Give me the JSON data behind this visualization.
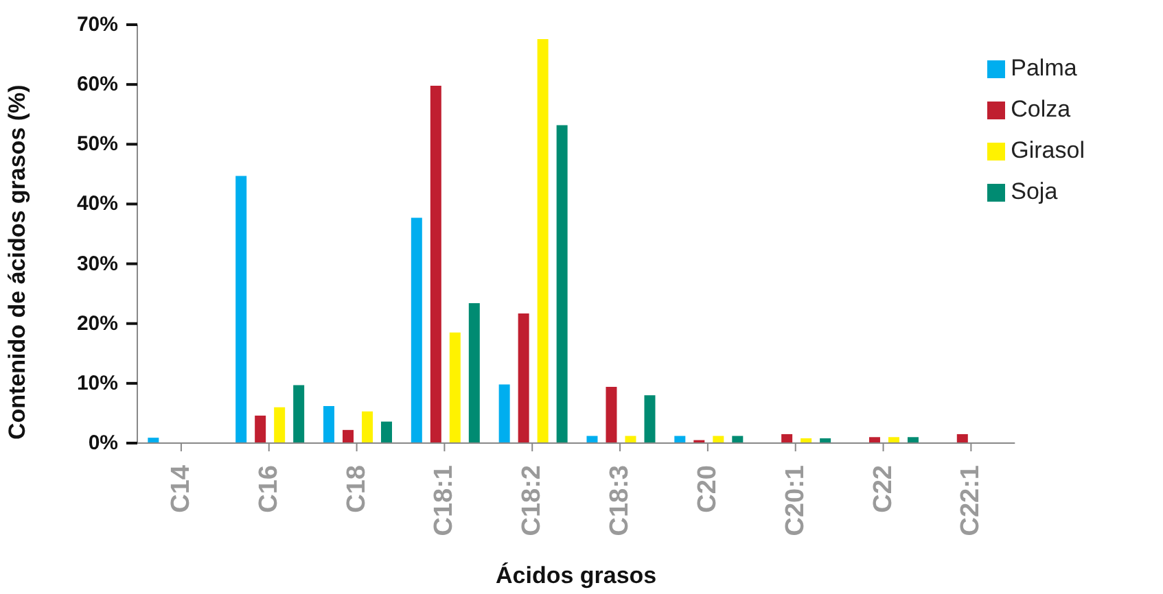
{
  "chart_data": {
    "type": "bar",
    "xlabel": "Ácidos grasos",
    "ylabel": "Contenido de ácidos grasos (%)",
    "categories": [
      "C14",
      "C16",
      "C18",
      "C18:1",
      "C18:2",
      "C18:3",
      "C20",
      "C20:1",
      "C22",
      "C22:1"
    ],
    "series": [
      {
        "name": "Palma",
        "color": "#00aeef",
        "values": [
          0.9,
          44.7,
          6.2,
          37.7,
          9.8,
          1.2,
          1.2,
          null,
          null,
          null
        ]
      },
      {
        "name": "Colza",
        "color": "#c01f30",
        "values": [
          null,
          4.6,
          2.2,
          59.8,
          21.7,
          9.4,
          0.5,
          1.5,
          1.0,
          1.5
        ]
      },
      {
        "name": "Girasol",
        "color": "#fff200",
        "values": [
          null,
          6.0,
          5.3,
          18.5,
          67.6,
          1.2,
          1.2,
          0.8,
          1.0,
          null
        ]
      },
      {
        "name": "Soja",
        "color": "#008b72",
        "values": [
          null,
          9.7,
          3.6,
          23.4,
          53.2,
          8.0,
          1.2,
          0.8,
          1.0,
          null
        ]
      }
    ],
    "ylim": [
      0,
      70
    ],
    "yticks": [
      {
        "value": 0,
        "label": "0%"
      },
      {
        "value": 10,
        "label": "10%"
      },
      {
        "value": 20,
        "label": "20%"
      },
      {
        "value": 30,
        "label": "30%"
      },
      {
        "value": 40,
        "label": "40%"
      },
      {
        "value": 50,
        "label": "50%"
      },
      {
        "value": 60,
        "label": "60%"
      },
      {
        "value": 70,
        "label": "70%"
      }
    ],
    "legend": "top right",
    "grid": false
  }
}
